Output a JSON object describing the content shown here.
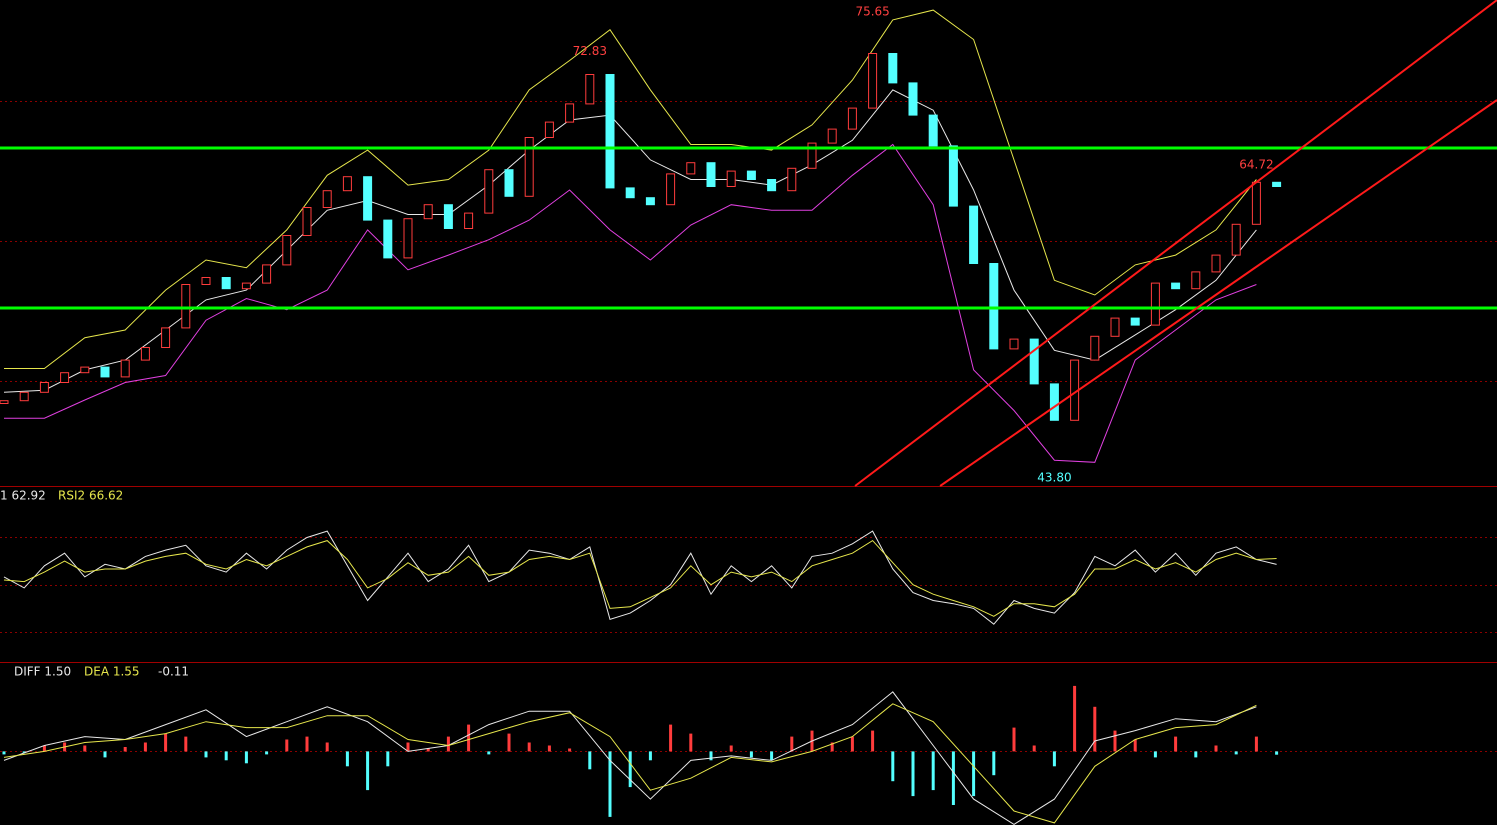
{
  "chart_data": [
    {
      "type": "candlestick",
      "xlim": [
        -0.2,
        73.91
      ],
      "ylim": [
        42.51,
        77.22
      ],
      "grid_levels": [
        70,
        60,
        50
      ],
      "first_open": 48.4,
      "closes": [
        48.6,
        49.2,
        49.9,
        50.6,
        51.0,
        50.3,
        51.5,
        52.4,
        53.8,
        56.9,
        57.4,
        56.6,
        57.0,
        58.3,
        60.4,
        62.4,
        63.6,
        64.6,
        61.5,
        58.8,
        61.6,
        62.6,
        60.9,
        62.0,
        65.1,
        63.2,
        67.4,
        68.5,
        69.8,
        71.9,
        63.8,
        63.1,
        62.6,
        64.8,
        65.6,
        63.9,
        65.0,
        64.4,
        63.6,
        65.2,
        67.0,
        68.0,
        69.5,
        73.4,
        71.3,
        69.0,
        66.8,
        62.5,
        58.4,
        52.3,
        53.0,
        49.8,
        47.2,
        51.5,
        53.2,
        54.5,
        54.0,
        57.0,
        56.6,
        57.8,
        59.0,
        61.2,
        64.2,
        63.9
      ],
      "up_color": "#ff3c3c",
      "down_color": "#54ffff",
      "band_x": [
        0,
        2,
        4,
        6,
        8,
        10,
        12,
        14,
        16,
        18,
        20,
        22,
        24,
        26,
        28,
        30,
        32,
        34,
        36,
        38,
        40,
        42,
        44,
        46,
        48,
        50,
        52,
        54,
        56,
        58,
        60,
        62
      ],
      "lines": [
        {
          "color": "#e6e64c",
          "values": [
            50.9,
            50.9,
            53.1,
            53.65,
            56.5,
            58.65,
            58.1,
            60.8,
            64.7,
            66.5,
            64.0,
            64.4,
            66.5,
            70.8,
            72.9,
            75.1,
            70.8,
            66.9,
            66.9,
            66.5,
            68.3,
            71.5,
            75.8,
            76.5,
            74.4,
            65.8,
            57.2,
            56.15,
            58.3,
            59.0,
            60.8,
            64.4
          ]
        },
        {
          "color": "#e8e8e8",
          "values": [
            49.2,
            49.35,
            50.8,
            51.5,
            53.65,
            55.8,
            56.5,
            59.35,
            62.2,
            62.9,
            61.9,
            61.9,
            64.0,
            66.5,
            68.65,
            69.0,
            65.8,
            64.4,
            64.4,
            64.0,
            65.45,
            67.2,
            70.8,
            69.35,
            63.65,
            56.5,
            52.2,
            51.5,
            53.3,
            55.1,
            57.2,
            60.8
          ]
        },
        {
          "color": "#e040e0",
          "values": [
            47.35,
            47.35,
            48.65,
            49.9,
            50.4,
            54.35,
            55.9,
            55.1,
            56.5,
            60.8,
            57.95,
            59.0,
            60.1,
            61.5,
            63.65,
            60.8,
            58.65,
            61.15,
            62.6,
            62.2,
            62.2,
            64.7,
            66.9,
            62.6,
            50.8,
            47.9,
            44.35,
            44.2,
            51.5,
            53.65,
            55.8,
            56.9
          ]
        }
      ],
      "horizontal_lines": {
        "color": "#00ff00",
        "values": [
          66.65,
          55.22
        ]
      },
      "trend_lines": {
        "color": "#ff1a1a",
        "lines": [
          {
            "x": [
              42.13,
              73.91
            ],
            "y": [
              42.51,
              77.22
            ]
          },
          {
            "x": [
              46.34,
              73.91
            ],
            "y": [
              42.51,
              70.08
            ]
          }
        ]
      },
      "annotations": [
        {
          "value": 72.83,
          "label": "72.83",
          "x": 29,
          "color": "#ff4040",
          "pos": "above"
        },
        {
          "value": 75.65,
          "label": "75.65",
          "x": 43,
          "color": "#ff4040",
          "pos": "above"
        },
        {
          "value": 64.72,
          "label": "64.72",
          "x": 62,
          "color": "#ff4040",
          "pos": "above"
        },
        {
          "value": 43.8,
          "label": "43.80",
          "x": 52,
          "color": "#54ffff",
          "pos": "below"
        }
      ]
    },
    {
      "type": "line",
      "xlim": [
        -0.2,
        73.91
      ],
      "ylim": [
        1,
        112
      ],
      "grid_levels": [
        80,
        50,
        20
      ],
      "title_labels": [
        {
          "text": "1 62.92",
          "color": "#e8e8e8"
        },
        {
          "text": "RSI2 66.62",
          "color": "#e6e64c"
        }
      ],
      "lines": [
        {
          "color": "#e8e8e8",
          "values": [
            55,
            48,
            62,
            70,
            55,
            63,
            60,
            68,
            72,
            75,
            62,
            58,
            70,
            60,
            72,
            80,
            84,
            62,
            40,
            55,
            70,
            52,
            60,
            75,
            52,
            58,
            72,
            70,
            66,
            74,
            28,
            32,
            40,
            50,
            70,
            44,
            62,
            52,
            62,
            48,
            68,
            70,
            76,
            84,
            60,
            45,
            40,
            38,
            35,
            25,
            40,
            35,
            32,
            45,
            68,
            62,
            72,
            58,
            70,
            56,
            70,
            74,
            66,
            62.92
          ]
        },
        {
          "color": "#e6e64c",
          "values": [
            53,
            52,
            58,
            65,
            58,
            60,
            60,
            65,
            68,
            70,
            63,
            60,
            66,
            62,
            68,
            74,
            78,
            66,
            48,
            54,
            64,
            56,
            58,
            68,
            56,
            58,
            66,
            68,
            66,
            70,
            35,
            36,
            42,
            48,
            62,
            50,
            58,
            55,
            58,
            52,
            62,
            66,
            70,
            78,
            64,
            50,
            44,
            40,
            36,
            30,
            38,
            38,
            36,
            44,
            60,
            60,
            66,
            60,
            64,
            58,
            66,
            70,
            66,
            66.62
          ]
        }
      ]
    },
    {
      "type": "macd",
      "xlim": [
        -0.2,
        73.91
      ],
      "ylim": [
        -2.47,
        2.97
      ],
      "grid_levels": [
        0
      ],
      "title_labels": [
        {
          "text": "DIFF 1.50",
          "color": "#e8e8e8"
        },
        {
          "text": "DEA 1.55",
          "color": "#e6e64c"
        },
        {
          "text": "-0.11",
          "color": "#e8e8e8"
        }
      ],
      "up_color": "#ff3c3c",
      "down_color": "#54ffff",
      "histogram": [
        -0.1,
        -0.05,
        0.2,
        0.3,
        0.2,
        -0.2,
        0.15,
        0.3,
        0.6,
        0.5,
        -0.2,
        -0.3,
        -0.4,
        -0.1,
        0.4,
        0.5,
        0.3,
        -0.5,
        -1.3,
        -0.5,
        0.3,
        0.1,
        0.5,
        0.9,
        -0.1,
        0.6,
        0.3,
        0.2,
        0.1,
        -0.6,
        -2.2,
        -1.2,
        -0.3,
        0.9,
        0.6,
        -0.3,
        0.2,
        -0.2,
        -0.3,
        0.5,
        0.7,
        0.3,
        0.5,
        0.7,
        -1.0,
        -1.5,
        -1.3,
        -1.8,
        -1.5,
        -0.8,
        0.8,
        0.2,
        -0.5,
        2.2,
        1.5,
        0.7,
        0.4,
        -0.2,
        0.5,
        -0.2,
        0.2,
        -0.1,
        0.5,
        -0.11
      ],
      "band_x": [
        0,
        2,
        4,
        6,
        8,
        10,
        12,
        14,
        16,
        18,
        20,
        22,
        24,
        26,
        28,
        30,
        32,
        34,
        36,
        38,
        40,
        42,
        44,
        46,
        48,
        50,
        52,
        54,
        56,
        58,
        60,
        62
      ],
      "lines": [
        {
          "color": "#e8e8e8",
          "values": [
            -0.3,
            0.2,
            0.5,
            0.4,
            0.9,
            1.4,
            0.5,
            1.0,
            1.5,
            1.0,
            0.0,
            0.2,
            0.9,
            1.35,
            1.35,
            -0.3,
            -1.6,
            -0.3,
            -0.15,
            -0.3,
            0.35,
            0.9,
            2.0,
            0.2,
            -1.6,
            -2.45,
            -1.6,
            0.35,
            0.7,
            1.1,
            1.0,
            1.5
          ]
        },
        {
          "color": "#e6e64c",
          "values": [
            -0.2,
            0.0,
            0.3,
            0.4,
            0.6,
            1.0,
            0.8,
            0.8,
            1.2,
            1.2,
            0.4,
            0.2,
            0.6,
            1.0,
            1.3,
            0.5,
            -1.3,
            -0.9,
            -0.2,
            -0.35,
            0.0,
            0.5,
            1.6,
            1.0,
            -0.5,
            -2.0,
            -2.4,
            -0.5,
            0.4,
            0.8,
            0.9,
            1.55
          ]
        }
      ]
    }
  ]
}
